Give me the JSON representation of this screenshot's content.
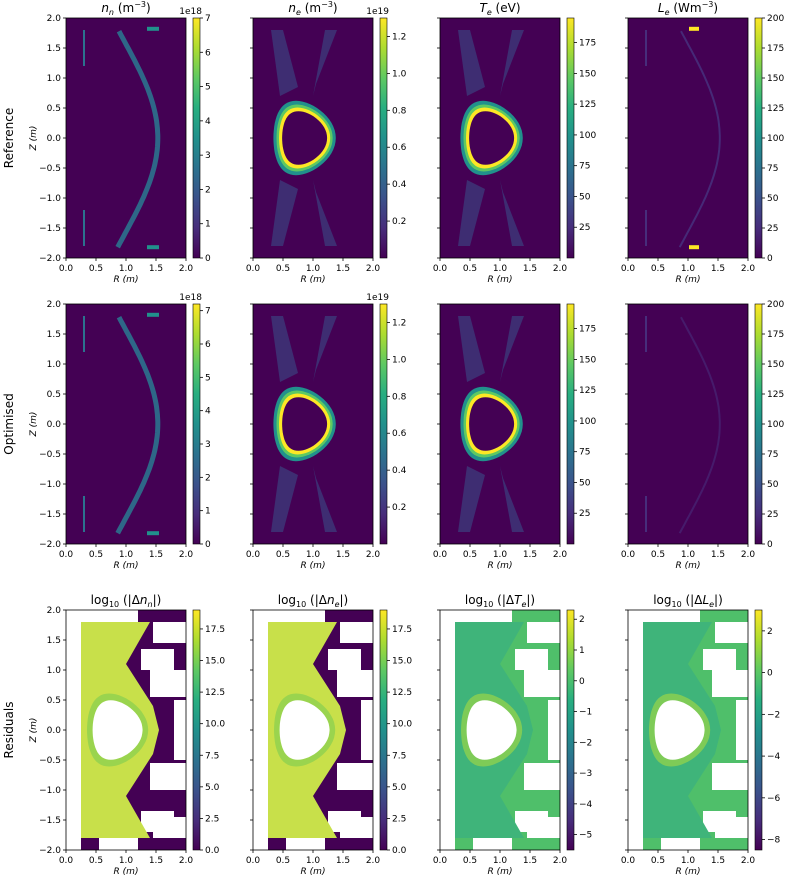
{
  "row_labels": [
    "Reference",
    "Optimised",
    "Residuals"
  ],
  "axis_labels": {
    "x": "R (m)",
    "y": "Z (m)"
  },
  "colors": {
    "viridis": [
      "#440154",
      "#472d7b",
      "#3b528b",
      "#2c728e",
      "#21918c",
      "#28ae80",
      "#5ec962",
      "#addc30",
      "#fde725"
    ],
    "residual_field": "#c8e04a",
    "residual_inner_ring": "#8fd14f"
  },
  "chart_data": [
    {
      "type": "heatmap",
      "row": "Reference",
      "title": "n_n (m^-3)",
      "quantity": "n_n",
      "unit": "m^-3",
      "xlim": [
        0,
        2
      ],
      "ylim": [
        -2,
        2
      ],
      "xticks": [
        "0.0",
        "0.5",
        "1.0",
        "1.5",
        "2.0"
      ],
      "yticks": [
        "2.0",
        "1.5",
        "1.0",
        "0.5",
        "0.0",
        "-0.5",
        "-1.0",
        "-1.5",
        "-2.0"
      ],
      "colorbar": {
        "range": [
          0,
          7
        ],
        "ticks": [
          "0",
          "1",
          "2",
          "3",
          "4",
          "5",
          "6",
          "7"
        ],
        "offset": "1e18"
      },
      "pattern": "neutral"
    },
    {
      "type": "heatmap",
      "row": "Reference",
      "title": "n_e (m^-3)",
      "quantity": "n_e",
      "unit": "m^-3",
      "xlim": [
        0,
        2
      ],
      "ylim": [
        -2,
        2
      ],
      "xticks": [
        "0.0",
        "0.5",
        "1.0",
        "1.5",
        "2.0"
      ],
      "yticks": [],
      "colorbar": {
        "range": [
          0,
          1.3
        ],
        "ticks": [
          "0.2",
          "0.4",
          "0.6",
          "0.8",
          "1.0",
          "1.2"
        ],
        "offset": "1e19"
      },
      "pattern": "core"
    },
    {
      "type": "heatmap",
      "row": "Reference",
      "title": "T_e (eV)",
      "quantity": "T_e",
      "unit": "eV",
      "xlim": [
        0,
        2
      ],
      "ylim": [
        -2,
        2
      ],
      "xticks": [
        "0.0",
        "0.5",
        "1.0",
        "1.5",
        "2.0"
      ],
      "yticks": [],
      "colorbar": {
        "range": [
          0,
          195
        ],
        "ticks": [
          "25",
          "50",
          "75",
          "100",
          "125",
          "150",
          "175"
        ],
        "offset": ""
      },
      "pattern": "core"
    },
    {
      "type": "heatmap",
      "row": "Reference",
      "title": "L_e (Wm^-3)",
      "quantity": "L_e",
      "unit": "Wm^-3",
      "xlim": [
        0,
        2
      ],
      "ylim": [
        -2,
        2
      ],
      "xticks": [
        "0.0",
        "0.5",
        "1.0",
        "1.5",
        "2.0"
      ],
      "yticks": [],
      "colorbar": {
        "range": [
          0,
          200
        ],
        "ticks": [
          "0",
          "25",
          "50",
          "75",
          "100",
          "125",
          "150",
          "175",
          "200"
        ],
        "offset": ""
      },
      "pattern": "radiation"
    },
    {
      "type": "heatmap",
      "row": "Optimised",
      "title": "",
      "quantity": "n_n",
      "unit": "m^-3",
      "xlim": [
        0,
        2
      ],
      "ylim": [
        -2,
        2
      ],
      "xticks": [
        "0.0",
        "0.5",
        "1.0",
        "1.5",
        "2.0"
      ],
      "yticks": [
        "2.0",
        "1.5",
        "1.0",
        "0.5",
        "0.0",
        "-0.5",
        "-1.0",
        "-1.5",
        "-2.0"
      ],
      "colorbar": {
        "range": [
          0,
          7.2
        ],
        "ticks": [
          "0",
          "1",
          "2",
          "3",
          "4",
          "5",
          "6",
          "7"
        ],
        "offset": "1e18"
      },
      "pattern": "neutral"
    },
    {
      "type": "heatmap",
      "row": "Optimised",
      "title": "",
      "quantity": "n_e",
      "unit": "m^-3",
      "xlim": [
        0,
        2
      ],
      "ylim": [
        -2,
        2
      ],
      "xticks": [
        "0.0",
        "0.5",
        "1.0",
        "1.5",
        "2.0"
      ],
      "yticks": [],
      "colorbar": {
        "range": [
          0,
          1.3
        ],
        "ticks": [
          "0.2",
          "0.4",
          "0.6",
          "0.8",
          "1.0",
          "1.2"
        ],
        "offset": "1e19"
      },
      "pattern": "core"
    },
    {
      "type": "heatmap",
      "row": "Optimised",
      "title": "",
      "quantity": "T_e",
      "unit": "eV",
      "xlim": [
        0,
        2
      ],
      "ylim": [
        -2,
        2
      ],
      "xticks": [
        "0.0",
        "0.5",
        "1.0",
        "1.5",
        "2.0"
      ],
      "yticks": [],
      "colorbar": {
        "range": [
          0,
          195
        ],
        "ticks": [
          "25",
          "50",
          "75",
          "100",
          "125",
          "150",
          "175"
        ],
        "offset": ""
      },
      "pattern": "core"
    },
    {
      "type": "heatmap",
      "row": "Optimised",
      "title": "",
      "quantity": "L_e",
      "unit": "Wm^-3",
      "xlim": [
        0,
        2
      ],
      "ylim": [
        -2,
        2
      ],
      "xticks": [
        "0.0",
        "0.5",
        "1.0",
        "1.5",
        "2.0"
      ],
      "yticks": [],
      "colorbar": {
        "range": [
          0,
          200
        ],
        "ticks": [
          "0",
          "25",
          "50",
          "75",
          "100",
          "125",
          "150",
          "175",
          "200"
        ],
        "offset": ""
      },
      "pattern": "radiation_faint"
    },
    {
      "type": "heatmap",
      "row": "Residuals",
      "title": "log10(|Δn_n|)",
      "quantity": "Δn_n",
      "unit": "",
      "xlim": [
        0,
        2
      ],
      "ylim": [
        -2,
        2
      ],
      "xticks": [
        "0.0",
        "0.5",
        "1.0",
        "1.5",
        "2.0"
      ],
      "yticks": [
        "2.0",
        "1.5",
        "1.0",
        "0.5",
        "0.0",
        "-0.5",
        "-1.0",
        "-1.5",
        "-2.0"
      ],
      "colorbar": {
        "range": [
          0,
          19
        ],
        "ticks": [
          "0.0",
          "2.5",
          "5.0",
          "7.5",
          "10.0",
          "12.5",
          "15.0",
          "17.5"
        ],
        "offset": ""
      },
      "pattern": "residual_high",
      "background": "#440154"
    },
    {
      "type": "heatmap",
      "row": "Residuals",
      "title": "log10(|Δn_e|)",
      "quantity": "Δn_e",
      "unit": "",
      "xlim": [
        0,
        2
      ],
      "ylim": [
        -2,
        2
      ],
      "xticks": [
        "0.0",
        "0.5",
        "1.0",
        "1.5",
        "2.0"
      ],
      "yticks": [],
      "colorbar": {
        "range": [
          0,
          19
        ],
        "ticks": [
          "0.0",
          "2.5",
          "5.0",
          "7.5",
          "10.0",
          "12.5",
          "15.0",
          "17.5"
        ],
        "offset": ""
      },
      "pattern": "residual_high",
      "background": "#440154"
    },
    {
      "type": "heatmap",
      "row": "Residuals",
      "title": "log10(|ΔT_e|)",
      "quantity": "ΔT_e",
      "unit": "",
      "xlim": [
        0,
        2
      ],
      "ylim": [
        -2,
        2
      ],
      "xticks": [
        "0.0",
        "0.5",
        "1.0",
        "1.5",
        "2.0"
      ],
      "yticks": [],
      "colorbar": {
        "range": [
          -5.5,
          2.3
        ],
        "ticks": [
          "2",
          "1",
          "0",
          "−1",
          "−2",
          "−3",
          "−4",
          "−5"
        ],
        "offset": ""
      },
      "pattern": "residual_mid",
      "background": "#4fbf6a"
    },
    {
      "type": "heatmap",
      "row": "Residuals",
      "title": "log10(|ΔL_e|)",
      "quantity": "ΔL_e",
      "unit": "",
      "xlim": [
        0,
        2
      ],
      "ylim": [
        -2,
        2
      ],
      "xticks": [
        "0.0",
        "0.5",
        "1.0",
        "1.5",
        "2.0"
      ],
      "yticks": [],
      "colorbar": {
        "range": [
          -8.5,
          3
        ],
        "ticks": [
          "2",
          "0",
          "−2",
          "−4",
          "−6",
          "−8"
        ],
        "offset": ""
      },
      "pattern": "residual_mid",
      "background": "#4fbf6a"
    }
  ]
}
